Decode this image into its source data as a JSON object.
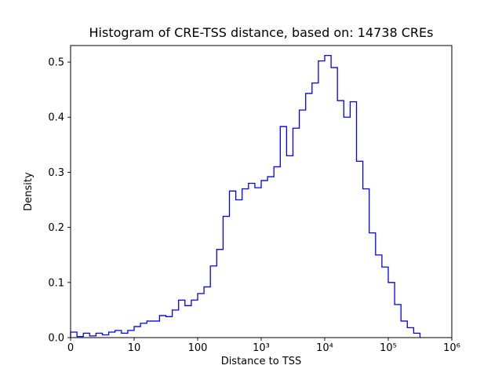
{
  "chart_data": {
    "type": "histogram-step",
    "title": "Histogram of CRE-TSS distance, based on: 14738 CREs",
    "xlabel": "Distance to TSS",
    "ylabel": "Density",
    "x_scale": "symlog",
    "xlim": [
      0,
      6
    ],
    "ylim": [
      0,
      0.53
    ],
    "x_tick_positions": [
      0,
      1,
      2,
      3,
      4,
      5,
      6
    ],
    "x_tick_labels": [
      "0",
      "10",
      "100",
      "10³",
      "10⁴",
      "10⁵",
      "10⁶"
    ],
    "y_ticks": [
      0.0,
      0.1,
      0.2,
      0.3,
      0.4,
      0.5
    ],
    "line_color": "#0000ff",
    "frame_color": "#000000",
    "bin_start_log10": 0.0,
    "bin_width_log10": 0.1,
    "densities": [
      0.01,
      0.002,
      0.008,
      0.003,
      0.008,
      0.005,
      0.01,
      0.013,
      0.008,
      0.013,
      0.02,
      0.026,
      0.03,
      0.03,
      0.04,
      0.038,
      0.05,
      0.068,
      0.058,
      0.068,
      0.08,
      0.092,
      0.13,
      0.16,
      0.22,
      0.266,
      0.25,
      0.27,
      0.28,
      0.272,
      0.285,
      0.292,
      0.31,
      0.383,
      0.33,
      0.38,
      0.413,
      0.443,
      0.462,
      0.502,
      0.512,
      0.49,
      0.43,
      0.4,
      0.428,
      0.32,
      0.27,
      0.19,
      0.15,
      0.128,
      0.1,
      0.06,
      0.03,
      0.018,
      0.008
    ]
  }
}
